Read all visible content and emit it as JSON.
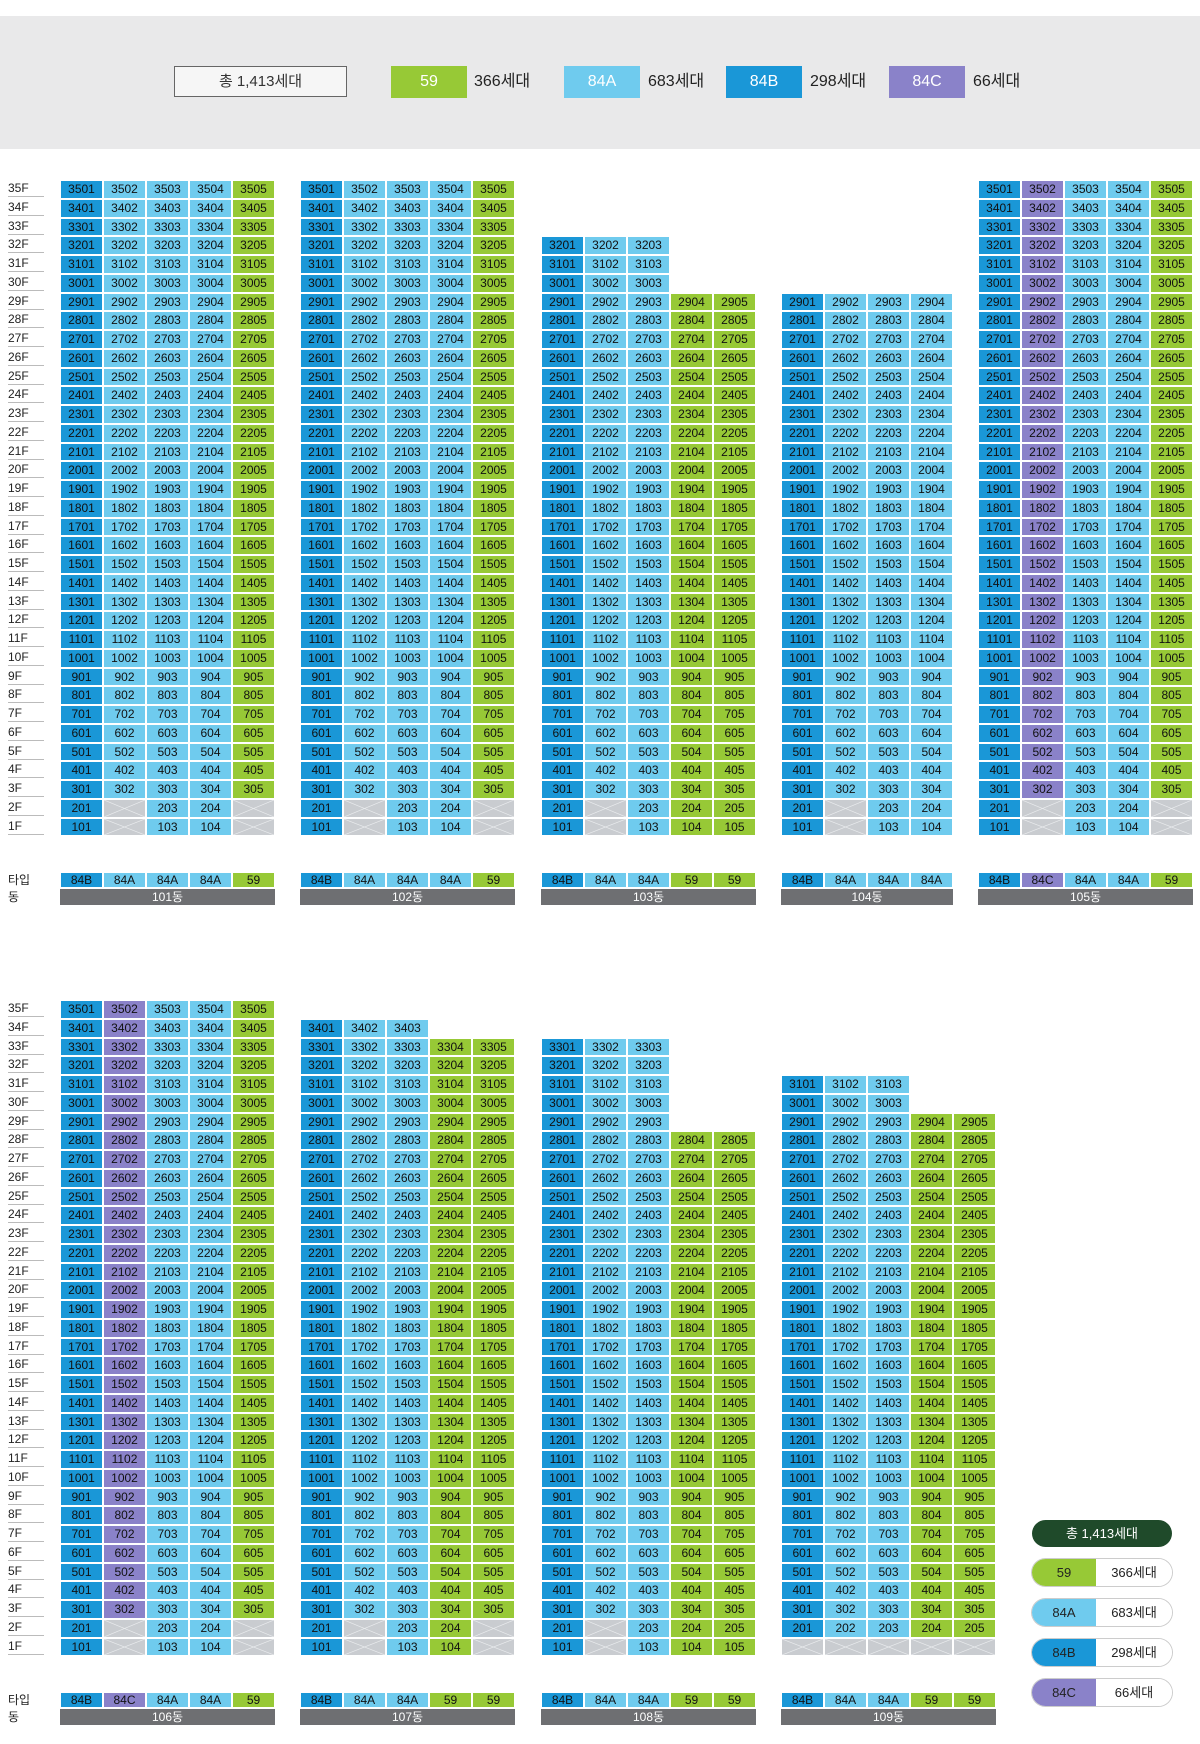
{
  "legend": {
    "total": "총 1,413세대",
    "items": [
      {
        "type": "59",
        "count": "366세대",
        "color": "#97c936"
      },
      {
        "type": "84A",
        "count": "683세대",
        "color": "#6fcbee"
      },
      {
        "type": "84B",
        "count": "298세대",
        "color": "#1a97d7"
      },
      {
        "type": "84C",
        "count": "66세대",
        "color": "#8a82c9"
      }
    ]
  },
  "axis": {
    "floors": [
      "35F",
      "34F",
      "33F",
      "32F",
      "31F",
      "30F",
      "29F",
      "28F",
      "27F",
      "26F",
      "25F",
      "24F",
      "23F",
      "22F",
      "21F",
      "20F",
      "19F",
      "18F",
      "17F",
      "16F",
      "15F",
      "14F",
      "13F",
      "12F",
      "11F",
      "10F",
      "9F",
      "8F",
      "7F",
      "6F",
      "5F",
      "4F",
      "3F",
      "2F",
      "1F"
    ],
    "type_label": "타입",
    "dong_label": "동"
  },
  "buildings": [
    {
      "name": "101동",
      "row": 0,
      "types": [
        "84B",
        "84A",
        "84A",
        "84A",
        "59"
      ],
      "tops": [
        35,
        35,
        35,
        35,
        35
      ],
      "empty": [
        [
          1,
          2
        ],
        [
          1,
          5
        ],
        [
          2,
          2
        ],
        [
          2,
          5
        ]
      ]
    },
    {
      "name": "102동",
      "row": 0,
      "types": [
        "84B",
        "84A",
        "84A",
        "84A",
        "59"
      ],
      "tops": [
        35,
        35,
        35,
        35,
        35
      ],
      "empty": [
        [
          1,
          2
        ],
        [
          1,
          5
        ],
        [
          2,
          2
        ],
        [
          2,
          5
        ]
      ]
    },
    {
      "name": "103동",
      "row": 0,
      "types": [
        "84B",
        "84A",
        "84A",
        "59",
        "59"
      ],
      "tops": [
        32,
        32,
        32,
        29,
        29
      ],
      "empty": [
        [
          1,
          2
        ],
        [
          2,
          2
        ]
      ]
    },
    {
      "name": "104동",
      "row": 0,
      "types": [
        "84B",
        "84A",
        "84A",
        "84A"
      ],
      "tops": [
        29,
        29,
        29,
        29
      ],
      "empty": [
        [
          1,
          2
        ],
        [
          2,
          2
        ]
      ]
    },
    {
      "name": "105동",
      "row": 0,
      "types": [
        "84B",
        "84C",
        "84A",
        "84A",
        "59"
      ],
      "tops": [
        35,
        35,
        35,
        35,
        35
      ],
      "empty": [
        [
          1,
          2
        ],
        [
          1,
          5
        ],
        [
          2,
          2
        ],
        [
          2,
          5
        ]
      ]
    },
    {
      "name": "106동",
      "row": 1,
      "types": [
        "84B",
        "84C",
        "84A",
        "84A",
        "59"
      ],
      "tops": [
        35,
        35,
        35,
        35,
        35
      ],
      "empty": [
        [
          1,
          2
        ],
        [
          1,
          5
        ],
        [
          2,
          2
        ],
        [
          2,
          5
        ]
      ]
    },
    {
      "name": "107동",
      "row": 1,
      "types": [
        "84B",
        "84A",
        "84A",
        "59",
        "59"
      ],
      "tops": [
        34,
        34,
        34,
        33,
        33
      ],
      "empty": [
        [
          1,
          2
        ],
        [
          1,
          5
        ],
        [
          2,
          2
        ],
        [
          2,
          5
        ]
      ]
    },
    {
      "name": "108동",
      "row": 1,
      "types": [
        "84B",
        "84A",
        "84A",
        "59",
        "59"
      ],
      "tops": [
        33,
        33,
        33,
        28,
        28
      ],
      "empty": [
        [
          1,
          2
        ],
        [
          2,
          2
        ]
      ]
    },
    {
      "name": "109동",
      "row": 1,
      "types": [
        "84B",
        "84A",
        "84A",
        "59",
        "59"
      ],
      "tops": [
        31,
        31,
        31,
        29,
        29
      ],
      "empty": [
        [
          1,
          1
        ],
        [
          1,
          2
        ],
        [
          1,
          3
        ],
        [
          1,
          4
        ],
        [
          1,
          5
        ]
      ]
    }
  ],
  "side_legend": {
    "total": "총 1,413세대",
    "items": [
      {
        "type": "59",
        "count": "366세대",
        "color": "#97c936"
      },
      {
        "type": "84A",
        "count": "683세대",
        "color": "#6fcbee"
      },
      {
        "type": "84B",
        "count": "298세대",
        "color": "#1a97d7"
      },
      {
        "type": "84C",
        "count": "66세대",
        "color": "#8a82c9"
      }
    ]
  }
}
